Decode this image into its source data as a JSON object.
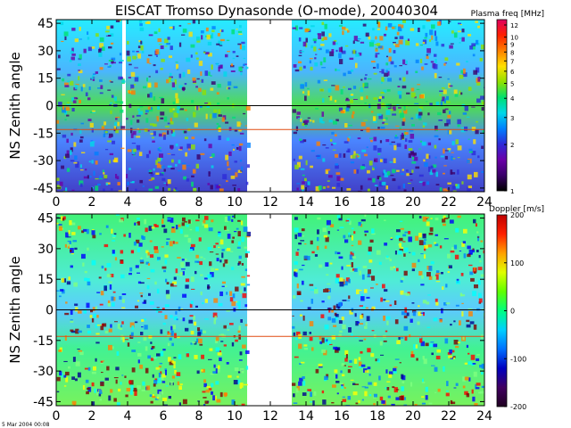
{
  "title": "EISCAT Tromso Dynasonde (O-mode),  20040304",
  "footer": "5 Mar 2004 00:08",
  "chart_data": [
    {
      "type": "heatmap",
      "panel": "top",
      "ylabel": "NS Zenith angle",
      "xlabel": "",
      "xlim": [
        0,
        24
      ],
      "ylim": [
        -47,
        47
      ],
      "x_ticks": [
        "0",
        "2",
        "4",
        "6",
        "8",
        "10",
        "12",
        "14",
        "16",
        "18",
        "20",
        "22",
        "24"
      ],
      "y_ticks": [
        "45",
        "30",
        "15",
        "0",
        "-15",
        "-30",
        "-45"
      ],
      "reference_lines": [
        {
          "y": 0,
          "color": "#000000"
        },
        {
          "y": -13,
          "color": "#e04a10"
        }
      ],
      "data_gaps": [
        [
          3.7,
          3.9
        ],
        [
          10.7,
          13.2
        ]
      ],
      "colorbar": {
        "label": "Plasma freq [MHz]",
        "scale": "log",
        "ticks": [
          "12",
          "10",
          "9",
          "8",
          "7",
          "6",
          "5",
          "4",
          "3",
          "2",
          "1"
        ],
        "range": [
          1,
          13
        ]
      }
    },
    {
      "type": "heatmap",
      "panel": "bottom",
      "ylabel": "NS Zenith angle",
      "xlabel": "",
      "xlim": [
        0,
        24
      ],
      "ylim": [
        -47,
        47
      ],
      "x_ticks": [
        "0",
        "2",
        "4",
        "6",
        "8",
        "10",
        "12",
        "14",
        "16",
        "18",
        "20",
        "22",
        "24"
      ],
      "y_ticks": [
        "45",
        "30",
        "15",
        "0",
        "-15",
        "-30",
        "-45"
      ],
      "reference_lines": [
        {
          "y": 0,
          "color": "#000000"
        },
        {
          "y": -13,
          "color": "#e04a10"
        }
      ],
      "data_gaps": [
        [
          10.7,
          13.2
        ]
      ],
      "colorbar": {
        "label": "Doppler [m/s]",
        "scale": "linear",
        "ticks": [
          "200",
          "100",
          "0",
          "-100",
          "-200"
        ],
        "range": [
          -200,
          200
        ]
      }
    }
  ]
}
